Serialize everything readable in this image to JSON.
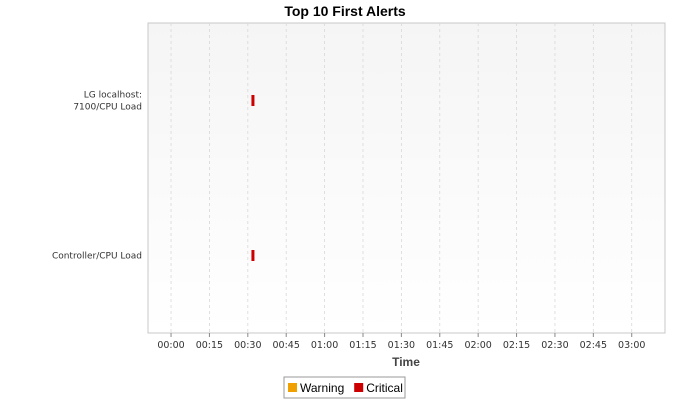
{
  "chart_data": {
    "type": "scatter",
    "title": "Top 10 First Alerts",
    "xlabel": "Time",
    "ylabel": "",
    "categories": [
      "LG localhost:\n7100/CPU Load",
      "Controller/CPU Load"
    ],
    "x_ticks": [
      "00:00",
      "00:15",
      "00:30",
      "00:45",
      "01:00",
      "01:15",
      "01:30",
      "01:45",
      "02:00",
      "02:15",
      "02:30",
      "02:45",
      "03:00"
    ],
    "xlim_minutes": [
      -9,
      193
    ],
    "grid": true,
    "legend_position": "bottom-center",
    "series": [
      {
        "name": "Warning",
        "color": "#f0a000",
        "points": []
      },
      {
        "name": "Critical",
        "color": "#cc0000",
        "points": [
          {
            "category": "LG localhost:\n7100/CPU Load",
            "time": "00:32"
          },
          {
            "category": "Controller/CPU Load",
            "time": "00:32"
          }
        ]
      }
    ]
  }
}
